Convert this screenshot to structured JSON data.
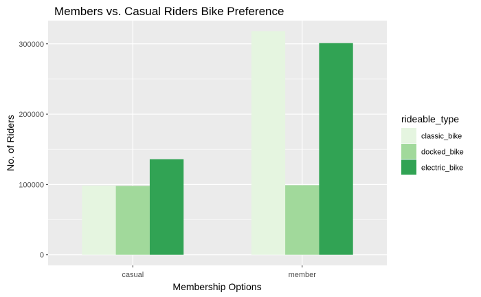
{
  "chart_data": {
    "type": "bar",
    "title": "Members vs. Casual Riders Bike Preference",
    "xlabel": "Membership Options",
    "ylabel": "No. of Riders",
    "categories": [
      "casual",
      "member"
    ],
    "series": [
      {
        "name": "classic_bike",
        "values": [
          98500,
          318000
        ],
        "color": "#e5f5e0"
      },
      {
        "name": "docked_bike",
        "values": [
          98000,
          99000
        ],
        "color": "#a1d99b"
      },
      {
        "name": "electric_bike",
        "values": [
          136000,
          301000
        ],
        "color": "#31a354"
      }
    ],
    "ylim": [
      -15000,
      333000
    ],
    "yticks": [
      0,
      100000,
      200000,
      300000
    ],
    "ytick_labels": [
      "0",
      "100000",
      "200000",
      "300000"
    ],
    "legend_title": "rideable_type",
    "legend_position": "right",
    "grid": true,
    "panel_background": "#ebebeb",
    "grid_color": "#ffffff"
  }
}
